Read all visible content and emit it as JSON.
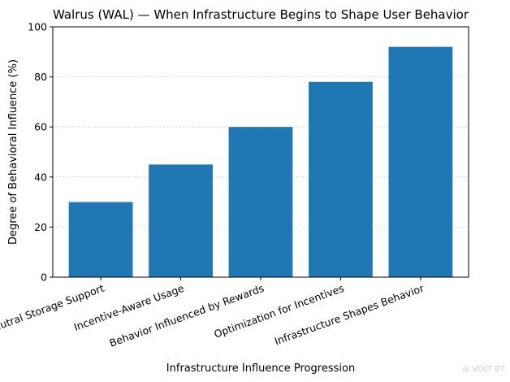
{
  "chart_data": {
    "type": "bar",
    "title": "Walrus (WAL) — When Infrastructure Begins to Shape User Behavior",
    "xlabel": "Infrastructure Influence Progression",
    "ylabel": "Degree of Behavioral Influence (%)",
    "categories": [
      "Neutral Storage Support",
      "Incentive-Aware Usage",
      "Behavior Influenced by Rewards",
      "Optimization for Incentives",
      "Infrastructure Shapes Behavior"
    ],
    "values": [
      30,
      45,
      60,
      78,
      92
    ],
    "ylim": [
      0,
      100
    ],
    "yticks": [
      0,
      20,
      40,
      60,
      80,
      100
    ],
    "grid": "horizontal dotted",
    "bar_color": "#1f77b4"
  },
  "watermark": "◎ VOLT 07"
}
